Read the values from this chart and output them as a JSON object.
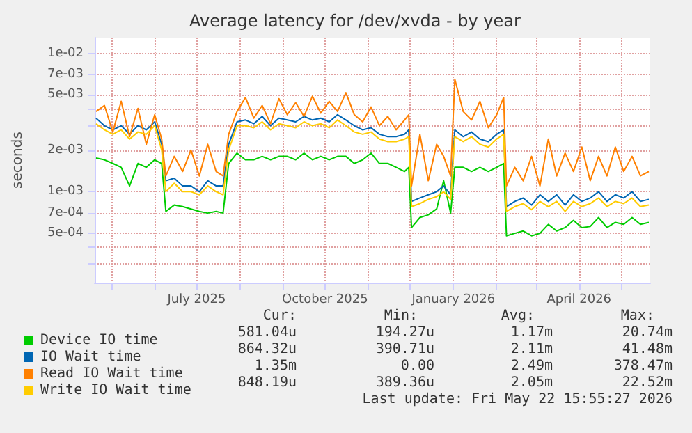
{
  "chart_data": {
    "type": "line",
    "title": "Average latency for /dev/xvda - by year",
    "ylabel": "seconds",
    "log": "y",
    "grid": true,
    "legend": "bottom",
    "x": [
      "2025-04-20",
      "2025-04-26",
      "2025-05-02",
      "2025-05-08",
      "2025-05-14",
      "2025-05-20",
      "2025-05-26",
      "2025-06-01",
      "2025-06-06",
      "2025-06-09",
      "2025-06-15",
      "2025-06-21",
      "2025-06-27",
      "2025-07-03",
      "2025-07-09",
      "2025-07-15",
      "2025-07-20",
      "2025-07-24",
      "2025-07-30",
      "2025-08-05",
      "2025-08-11",
      "2025-08-17",
      "2025-08-23",
      "2025-08-29",
      "2025-09-04",
      "2025-09-10",
      "2025-09-16",
      "2025-09-22",
      "2025-09-28",
      "2025-10-04",
      "2025-10-10",
      "2025-10-16",
      "2025-10-22",
      "2025-10-28",
      "2025-11-03",
      "2025-11-09",
      "2025-11-15",
      "2025-11-21",
      "2025-11-27",
      "2025-11-30",
      "2025-12-02",
      "2025-12-08",
      "2025-12-14",
      "2025-12-20",
      "2025-12-25",
      "2025-12-30",
      "2026-01-02",
      "2026-01-08",
      "2026-01-14",
      "2026-01-20",
      "2026-01-26",
      "2026-02-01",
      "2026-02-06",
      "2026-02-08",
      "2026-02-14",
      "2026-02-20",
      "2026-02-26",
      "2026-03-04",
      "2026-03-10",
      "2026-03-16",
      "2026-03-22",
      "2026-03-28",
      "2026-04-03",
      "2026-04-09",
      "2026-04-15",
      "2026-04-21",
      "2026-04-27",
      "2026-05-03",
      "2026-05-09",
      "2026-05-15",
      "2026-05-21"
    ],
    "series": [
      {
        "name": "Device IO time",
        "color": "#00cc00",
        "values": [
          0.00175,
          0.0017,
          0.0016,
          0.0015,
          0.0011,
          0.0016,
          0.0015,
          0.0017,
          0.0016,
          0.00072,
          0.0008,
          0.00078,
          0.00075,
          0.00072,
          0.0007,
          0.00072,
          0.0007,
          0.0016,
          0.0019,
          0.0017,
          0.0017,
          0.0018,
          0.0017,
          0.0018,
          0.0018,
          0.0017,
          0.0019,
          0.0017,
          0.0018,
          0.0017,
          0.0018,
          0.0018,
          0.0016,
          0.0017,
          0.0019,
          0.0016,
          0.0016,
          0.0015,
          0.0014,
          0.0015,
          0.00055,
          0.00065,
          0.00068,
          0.00075,
          0.0012,
          0.0007,
          0.0015,
          0.0015,
          0.0014,
          0.0015,
          0.0014,
          0.0015,
          0.0016,
          0.00048,
          0.0005,
          0.00052,
          0.00048,
          0.0005,
          0.00058,
          0.00052,
          0.00055,
          0.00062,
          0.00055,
          0.00056,
          0.00065,
          0.00055,
          0.0006,
          0.00058,
          0.00065,
          0.00058,
          0.0006
        ]
      },
      {
        "name": "IO Wait time",
        "color": "#0066b3",
        "values": [
          0.0034,
          0.003,
          0.0028,
          0.003,
          0.0026,
          0.003,
          0.0028,
          0.0032,
          0.0022,
          0.0012,
          0.00125,
          0.0011,
          0.0011,
          0.001,
          0.0012,
          0.0011,
          0.0011,
          0.0022,
          0.0032,
          0.0033,
          0.0031,
          0.0035,
          0.003,
          0.0034,
          0.0033,
          0.0032,
          0.0035,
          0.0033,
          0.0034,
          0.0032,
          0.0036,
          0.0033,
          0.003,
          0.0028,
          0.0029,
          0.0026,
          0.0025,
          0.0025,
          0.0026,
          0.0028,
          0.00085,
          0.0009,
          0.00095,
          0.001,
          0.0011,
          0.00095,
          0.0028,
          0.0025,
          0.0027,
          0.0024,
          0.0023,
          0.0026,
          0.0028,
          0.00078,
          0.00085,
          0.0009,
          0.0008,
          0.00095,
          0.00085,
          0.00095,
          0.0008,
          0.00095,
          0.00085,
          0.0009,
          0.001,
          0.00085,
          0.00095,
          0.0009,
          0.001,
          0.00085,
          0.00088
        ]
      },
      {
        "name": "Read IO Wait time",
        "color": "#ff8000",
        "values": [
          0.0038,
          0.0042,
          0.0027,
          0.0045,
          0.0025,
          0.004,
          0.0022,
          0.0036,
          0.0024,
          0.0013,
          0.0018,
          0.0014,
          0.002,
          0.0013,
          0.0022,
          0.0014,
          0.0013,
          0.0026,
          0.0038,
          0.0048,
          0.0034,
          0.0042,
          0.0031,
          0.0047,
          0.0036,
          0.0044,
          0.0035,
          0.0049,
          0.0037,
          0.0045,
          0.0038,
          0.0052,
          0.0036,
          0.0032,
          0.0041,
          0.003,
          0.0035,
          0.0028,
          0.0033,
          0.0036,
          0.0011,
          0.0026,
          0.0012,
          0.0022,
          0.0018,
          0.0013,
          0.0065,
          0.0038,
          0.0033,
          0.0045,
          0.0029,
          0.0036,
          0.0048,
          0.0011,
          0.0015,
          0.0012,
          0.0018,
          0.0011,
          0.0024,
          0.0013,
          0.0019,
          0.0014,
          0.0021,
          0.0012,
          0.0018,
          0.0013,
          0.0021,
          0.0014,
          0.0018,
          0.0013,
          0.0014
        ]
      },
      {
        "name": "Write IO Wait time",
        "color": "#ffcc00",
        "values": [
          0.0031,
          0.0028,
          0.0026,
          0.0028,
          0.0024,
          0.0027,
          0.0026,
          0.003,
          0.002,
          0.001,
          0.00115,
          0.001,
          0.001,
          0.00095,
          0.0011,
          0.001,
          0.00095,
          0.002,
          0.003,
          0.003,
          0.0029,
          0.0032,
          0.0028,
          0.0031,
          0.003,
          0.0029,
          0.0032,
          0.003,
          0.0031,
          0.0029,
          0.0033,
          0.003,
          0.0027,
          0.0026,
          0.0027,
          0.0024,
          0.0023,
          0.0023,
          0.0024,
          0.0025,
          0.00078,
          0.00082,
          0.00088,
          0.00092,
          0.001,
          0.00088,
          0.0025,
          0.0023,
          0.0025,
          0.0022,
          0.0021,
          0.0024,
          0.0026,
          0.00072,
          0.00078,
          0.00082,
          0.00074,
          0.00085,
          0.00078,
          0.00085,
          0.00072,
          0.00085,
          0.00078,
          0.00082,
          0.0009,
          0.00078,
          0.00085,
          0.00082,
          0.0009,
          0.00078,
          0.0008
        ]
      }
    ],
    "xlim": [
      "2025-04-19",
      "2026-05-22"
    ],
    "xticks": [
      {
        "value": "2025-05-01",
        "label": null
      },
      {
        "value": "2025-06-01",
        "label": null
      },
      {
        "value": "2025-07-01",
        "label": "July 2025"
      },
      {
        "value": "2025-08-01",
        "label": null
      },
      {
        "value": "2025-09-01",
        "label": null
      },
      {
        "value": "2025-10-01",
        "label": "October 2025"
      },
      {
        "value": "2025-11-01",
        "label": null
      },
      {
        "value": "2025-12-01",
        "label": null
      },
      {
        "value": "2026-01-01",
        "label": "January 2026"
      },
      {
        "value": "2026-02-01",
        "label": null
      },
      {
        "value": "2026-03-01",
        "label": null
      },
      {
        "value": "2026-04-01",
        "label": "April 2026"
      },
      {
        "value": "2026-05-01",
        "label": null
      }
    ],
    "ylim": [
      0.00022,
      0.013
    ],
    "yticks": [
      {
        "value": 0.0003,
        "label": null
      },
      {
        "value": 0.0004,
        "label": null
      },
      {
        "value": 0.0005,
        "label": "5e-04"
      },
      {
        "value": 0.0007,
        "label": "7e-04"
      },
      {
        "value": 0.001,
        "label": "1e-03"
      },
      {
        "value": 0.002,
        "label": "2e-03"
      },
      {
        "value": 0.003,
        "label": null
      },
      {
        "value": 0.004,
        "label": null
      },
      {
        "value": 0.005,
        "label": "5e-03"
      },
      {
        "value": 0.007,
        "label": "7e-03"
      },
      {
        "value": 0.01,
        "label": "1e-02"
      }
    ],
    "annotations": [
      "Cur:",
      "Min:",
      "Avg:",
      "Max:",
      "581.04u",
      "194.27u",
      "1.17m",
      "20.74m",
      "864.32u",
      "390.71u",
      "2.11m",
      "41.48m",
      "1.35m",
      "0.00",
      "2.49m",
      "378.47m",
      "848.19u",
      "389.36u",
      "2.05m",
      "22.52m",
      "Last update: Fri May 22 15:55:27 2026"
    ]
  }
}
